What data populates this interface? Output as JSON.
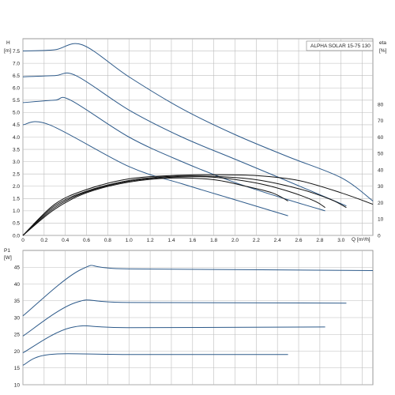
{
  "chart_data": [
    {
      "type": "line",
      "title": "ALPHA SOLAR 15-75  130",
      "ylabel": "H",
      "yunit": "[m]",
      "y2label": "eta",
      "y2unit": "[%]",
      "xlabel": "Q",
      "xunit": "[m³/h]",
      "xlim": [
        0,
        3.3
      ],
      "ylim": [
        0,
        8.0
      ],
      "y2lim": [
        0,
        120
      ],
      "grid": true,
      "x_ticks": [
        "0",
        "0.2",
        "0.4",
        "0.6",
        "0.8",
        "1.0",
        "1.2",
        "1.4",
        "1.6",
        "1.8",
        "2.0",
        "2.2",
        "2.4",
        "2.6",
        "2.8",
        "3.0"
      ],
      "y_ticks": [
        "0.0",
        "0.5",
        "1.0",
        "1.5",
        "2.0",
        "2.5",
        "3.0",
        "3.5",
        "4.0",
        "4.5",
        "5.0",
        "5.5",
        "6.0",
        "6.5",
        "7.0",
        "7.5"
      ],
      "y2_ticks": [
        "0",
        "10",
        "20",
        "30",
        "40",
        "50",
        "60",
        "70",
        "80"
      ],
      "series": [
        {
          "color": "#2d5a8a",
          "x": [
            0,
            0.3,
            0.56,
            1.0,
            1.5,
            2.0,
            2.5,
            3.0,
            3.3
          ],
          "y": [
            7.5,
            7.55,
            7.75,
            6.45,
            5.15,
            4.1,
            3.2,
            2.35,
            1.4
          ]
        },
        {
          "color": "#2d5a8a",
          "x": [
            0,
            0.3,
            0.5,
            1.0,
            1.5,
            2.0,
            2.5,
            3.05
          ],
          "y": [
            6.45,
            6.5,
            6.5,
            5.1,
            4.0,
            3.1,
            2.2,
            1.2
          ]
        },
        {
          "color": "#2d5a8a",
          "x": [
            0,
            0.3,
            0.45,
            1.0,
            1.5,
            2.0,
            2.5,
            2.85
          ],
          "y": [
            5.4,
            5.5,
            5.5,
            4.0,
            3.0,
            2.15,
            1.45,
            1.0
          ]
        },
        {
          "color": "#2d5a8a",
          "x": [
            0,
            0.25,
            1.0,
            1.5,
            2.0,
            2.5
          ],
          "y": [
            4.5,
            4.5,
            2.8,
            2.1,
            1.45,
            0.8
          ]
        },
        {
          "color": "#111111",
          "axis": "y2",
          "x": [
            0,
            0.3,
            0.6,
            1.0,
            1.4,
            1.8,
            2.2,
            2.6,
            3.0,
            3.3
          ],
          "y": [
            0,
            19,
            28,
            34.5,
            36.5,
            37,
            36.5,
            33.5,
            26,
            19
          ]
        },
        {
          "color": "#111111",
          "axis": "y2",
          "x": [
            0,
            0.3,
            0.6,
            1.0,
            1.4,
            1.8,
            2.2,
            2.6,
            2.9,
            3.05
          ],
          "y": [
            0,
            18,
            27,
            33.5,
            36,
            36,
            34,
            28.5,
            22,
            17
          ]
        },
        {
          "color": "#111111",
          "axis": "y2",
          "x": [
            0,
            0.3,
            0.6,
            1.0,
            1.4,
            1.8,
            2.2,
            2.5,
            2.75,
            2.85
          ],
          "y": [
            0,
            17,
            26.5,
            33,
            35.5,
            35.5,
            32,
            27,
            21,
            17
          ]
        },
        {
          "color": "#111111",
          "axis": "y2",
          "x": [
            0,
            0.3,
            0.6,
            1.0,
            1.4,
            1.8,
            2.1,
            2.35,
            2.5
          ],
          "y": [
            0,
            16,
            26,
            32.5,
            35,
            34,
            30,
            26,
            21
          ]
        }
      ]
    },
    {
      "type": "line",
      "ylabel": "P1",
      "yunit": "[W]",
      "xlim": [
        0,
        3.3
      ],
      "ylim": [
        10,
        50
      ],
      "grid": true,
      "y_ticks": [
        "10",
        "15",
        "20",
        "25",
        "30",
        "35",
        "40",
        "45"
      ],
      "series": [
        {
          "color": "#2d5a8a",
          "x": [
            0,
            0.56,
            1.0,
            3.3
          ],
          "y": [
            30.5,
            44.5,
            44.5,
            44
          ]
        },
        {
          "color": "#2d5a8a",
          "x": [
            0,
            0.5,
            1.0,
            3.05
          ],
          "y": [
            24.5,
            34.5,
            34.5,
            34.3
          ]
        },
        {
          "color": "#2d5a8a",
          "x": [
            0,
            0.45,
            1.0,
            2.85
          ],
          "y": [
            19.5,
            27,
            27,
            27.2
          ]
        },
        {
          "color": "#2d5a8a",
          "x": [
            0,
            0.25,
            1.0,
            2.5
          ],
          "y": [
            15.8,
            19,
            19,
            19
          ]
        }
      ]
    }
  ]
}
